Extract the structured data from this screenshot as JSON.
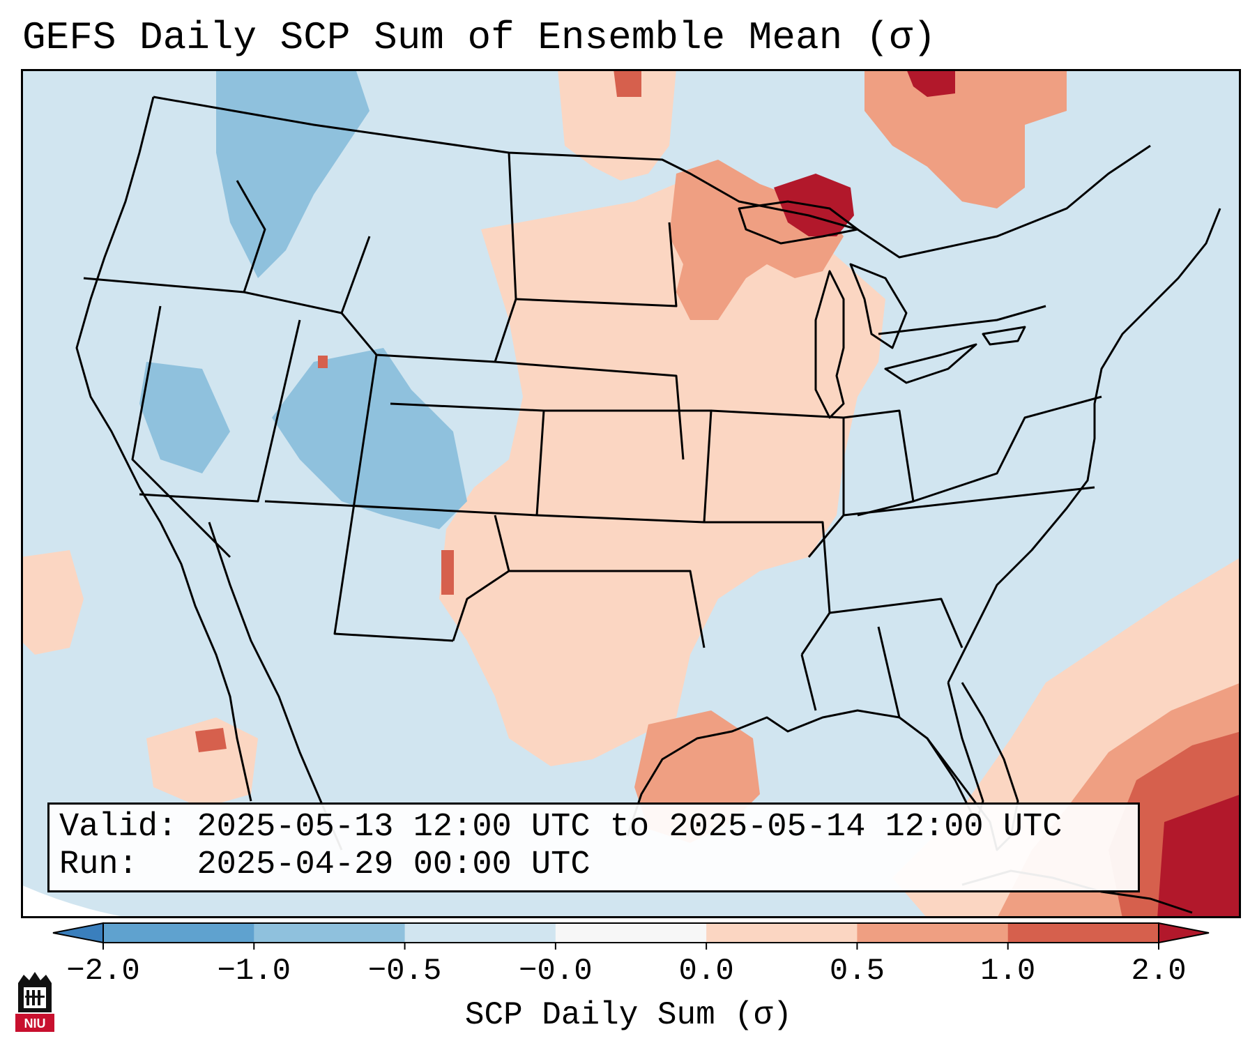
{
  "title": "GEFS Daily SCP Sum of Ensemble Mean (σ)",
  "info": {
    "valid_label": "Valid:",
    "valid_value": "2025-05-13 12:00 UTC to 2025-05-14 12:00 UTC",
    "run_label": "Run:",
    "run_value": "2025-04-29 00:00 UTC"
  },
  "colorbar": {
    "label": "SCP Daily Sum (σ)",
    "ticks": [
      "−2.0",
      "−1.0",
      "−0.5",
      "−0.0",
      "0.0",
      "0.5",
      "1.0",
      "2.0"
    ],
    "colors": [
      "#3a7fbd",
      "#8fc1dd",
      "#d1e5f0",
      "#f7f7f7",
      "#fbd6c2",
      "#ef9f82",
      "#d6604d",
      "#b2182b"
    ],
    "extend": "both"
  },
  "map": {
    "projection": "Lambert Conformal",
    "region": "Contiguous United States",
    "background_anomaly_color": "#d1e5f0"
  },
  "logo": {
    "text": "NIU"
  }
}
